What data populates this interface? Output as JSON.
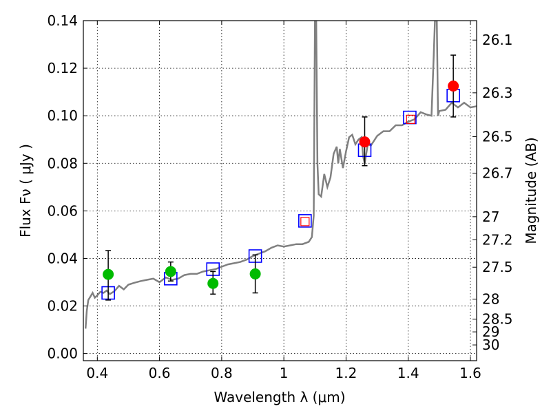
{
  "chart_data": {
    "type": "scatter",
    "xlabel": "Wavelength  λ (μm)",
    "ylabel": "Flux  Fν  ( μJy )",
    "ylabel_right": "Magnitude (AB)",
    "xlim": [
      0.355,
      1.62
    ],
    "ylim": [
      -0.003,
      0.14
    ],
    "x_ticks": [
      0.4,
      0.6,
      0.8,
      1.0,
      1.2,
      1.4,
      1.6
    ],
    "x_tick_labels": [
      "0.4",
      "0.6",
      "0.8",
      "1",
      "1.2",
      "1.4",
      "1.6"
    ],
    "y_ticks": [
      0.0,
      0.02,
      0.04,
      0.06,
      0.08,
      0.1,
      0.12,
      0.14
    ],
    "y_tick_labels": [
      "0.00",
      "0.02",
      "0.04",
      "0.06",
      "0.08",
      "0.10",
      "0.12",
      "0.14"
    ],
    "right_ticks": [
      {
        "label": "26.1",
        "mag": 26.1
      },
      {
        "label": "26.3",
        "mag": 26.3
      },
      {
        "label": "26.5",
        "mag": 26.5
      },
      {
        "label": "26.7",
        "mag": 26.7
      },
      {
        "label": "27",
        "mag": 27.0
      },
      {
        "label": "27.2",
        "mag": 27.2
      },
      {
        "label": "27.5",
        "mag": 27.5
      },
      {
        "label": "28",
        "mag": 28.0
      },
      {
        "label": "28.5",
        "mag": 28.5
      },
      {
        "label": "29",
        "mag": 29.0
      },
      {
        "label": "30",
        "mag": 30.0
      }
    ],
    "grid": true,
    "colors": {
      "model": "#808080",
      "green": "#00bb00",
      "red": "#ff0000",
      "square": "#0000ff",
      "small_square": "#ff0000"
    },
    "model_spectrum": [
      [
        0.362,
        0.0105
      ],
      [
        0.366,
        0.018
      ],
      [
        0.371,
        0.0225
      ],
      [
        0.378,
        0.024
      ],
      [
        0.385,
        0.0255
      ],
      [
        0.392,
        0.0235
      ],
      [
        0.4,
        0.0245
      ],
      [
        0.41,
        0.026
      ],
      [
        0.42,
        0.0255
      ],
      [
        0.43,
        0.0265
      ],
      [
        0.44,
        0.025
      ],
      [
        0.455,
        0.0262
      ],
      [
        0.47,
        0.0285
      ],
      [
        0.485,
        0.027
      ],
      [
        0.5,
        0.029
      ],
      [
        0.52,
        0.0298
      ],
      [
        0.54,
        0.0305
      ],
      [
        0.56,
        0.031
      ],
      [
        0.58,
        0.0315
      ],
      [
        0.6,
        0.03
      ],
      [
        0.62,
        0.032
      ],
      [
        0.64,
        0.031
      ],
      [
        0.66,
        0.0315
      ],
      [
        0.68,
        0.033
      ],
      [
        0.7,
        0.0335
      ],
      [
        0.72,
        0.0335
      ],
      [
        0.74,
        0.0345
      ],
      [
        0.76,
        0.035
      ],
      [
        0.78,
        0.0355
      ],
      [
        0.8,
        0.0365
      ],
      [
        0.82,
        0.0375
      ],
      [
        0.84,
        0.038
      ],
      [
        0.86,
        0.0385
      ],
      [
        0.88,
        0.0395
      ],
      [
        0.9,
        0.041
      ],
      [
        0.92,
        0.042
      ],
      [
        0.94,
        0.043
      ],
      [
        0.96,
        0.0445
      ],
      [
        0.98,
        0.0455
      ],
      [
        1.0,
        0.045
      ],
      [
        1.02,
        0.0455
      ],
      [
        1.04,
        0.046
      ],
      [
        1.06,
        0.046
      ],
      [
        1.08,
        0.047
      ],
      [
        1.09,
        0.049
      ],
      [
        1.096,
        0.058
      ],
      [
        1.1,
        0.14
      ],
      [
        1.104,
        0.14
      ],
      [
        1.108,
        0.08
      ],
      [
        1.112,
        0.067
      ],
      [
        1.12,
        0.066
      ],
      [
        1.13,
        0.0755
      ],
      [
        1.14,
        0.07
      ],
      [
        1.15,
        0.074
      ],
      [
        1.16,
        0.084
      ],
      [
        1.17,
        0.087
      ],
      [
        1.175,
        0.08
      ],
      [
        1.18,
        0.086
      ],
      [
        1.19,
        0.078
      ],
      [
        1.2,
        0.085
      ],
      [
        1.21,
        0.091
      ],
      [
        1.22,
        0.092
      ],
      [
        1.23,
        0.088
      ],
      [
        1.24,
        0.09
      ],
      [
        1.25,
        0.091
      ],
      [
        1.255,
        0.083
      ],
      [
        1.26,
        0.08
      ],
      [
        1.27,
        0.088
      ],
      [
        1.28,
        0.0875
      ],
      [
        1.3,
        0.0915
      ],
      [
        1.32,
        0.0935
      ],
      [
        1.34,
        0.0935
      ],
      [
        1.36,
        0.096
      ],
      [
        1.38,
        0.096
      ],
      [
        1.4,
        0.0975
      ],
      [
        1.42,
        0.0985
      ],
      [
        1.44,
        0.1015
      ],
      [
        1.46,
        0.1005
      ],
      [
        1.475,
        0.1
      ],
      [
        1.482,
        0.125
      ],
      [
        1.486,
        0.14
      ],
      [
        1.492,
        0.14
      ],
      [
        1.496,
        0.1
      ],
      [
        1.5,
        0.102
      ],
      [
        1.52,
        0.1025
      ],
      [
        1.54,
        0.1055
      ],
      [
        1.56,
        0.1035
      ],
      [
        1.58,
        0.1055
      ],
      [
        1.6,
        0.1035
      ],
      [
        1.62,
        0.104
      ]
    ],
    "green_points": [
      {
        "x": 0.435,
        "y": 0.0333,
        "err_lo": 0.0225,
        "err_hi": 0.0433
      },
      {
        "x": 0.636,
        "y": 0.0345,
        "err_lo": 0.0305,
        "err_hi": 0.0385
      },
      {
        "x": 0.772,
        "y": 0.0295,
        "err_lo": 0.025,
        "err_hi": 0.0345
      },
      {
        "x": 0.908,
        "y": 0.0335,
        "err_lo": 0.0255,
        "err_hi": 0.0415
      }
    ],
    "red_points": [
      {
        "x": 1.26,
        "y": 0.089,
        "err_lo": 0.079,
        "err_hi": 0.0995
      },
      {
        "x": 1.545,
        "y": 0.1125,
        "err_lo": 0.0995,
        "err_hi": 0.1255
      }
    ],
    "model_squares": [
      {
        "x": 0.435,
        "y": 0.0255
      },
      {
        "x": 0.636,
        "y": 0.0315
      },
      {
        "x": 0.772,
        "y": 0.0355
      },
      {
        "x": 0.908,
        "y": 0.041
      },
      {
        "x": 1.068,
        "y": 0.0558
      },
      {
        "x": 1.26,
        "y": 0.0855
      },
      {
        "x": 1.405,
        "y": 0.0993
      },
      {
        "x": 1.545,
        "y": 0.1085
      }
    ],
    "small_red_squares": [
      {
        "x": 1.068,
        "y": 0.0555
      },
      {
        "x": 1.408,
        "y": 0.0985
      }
    ]
  }
}
